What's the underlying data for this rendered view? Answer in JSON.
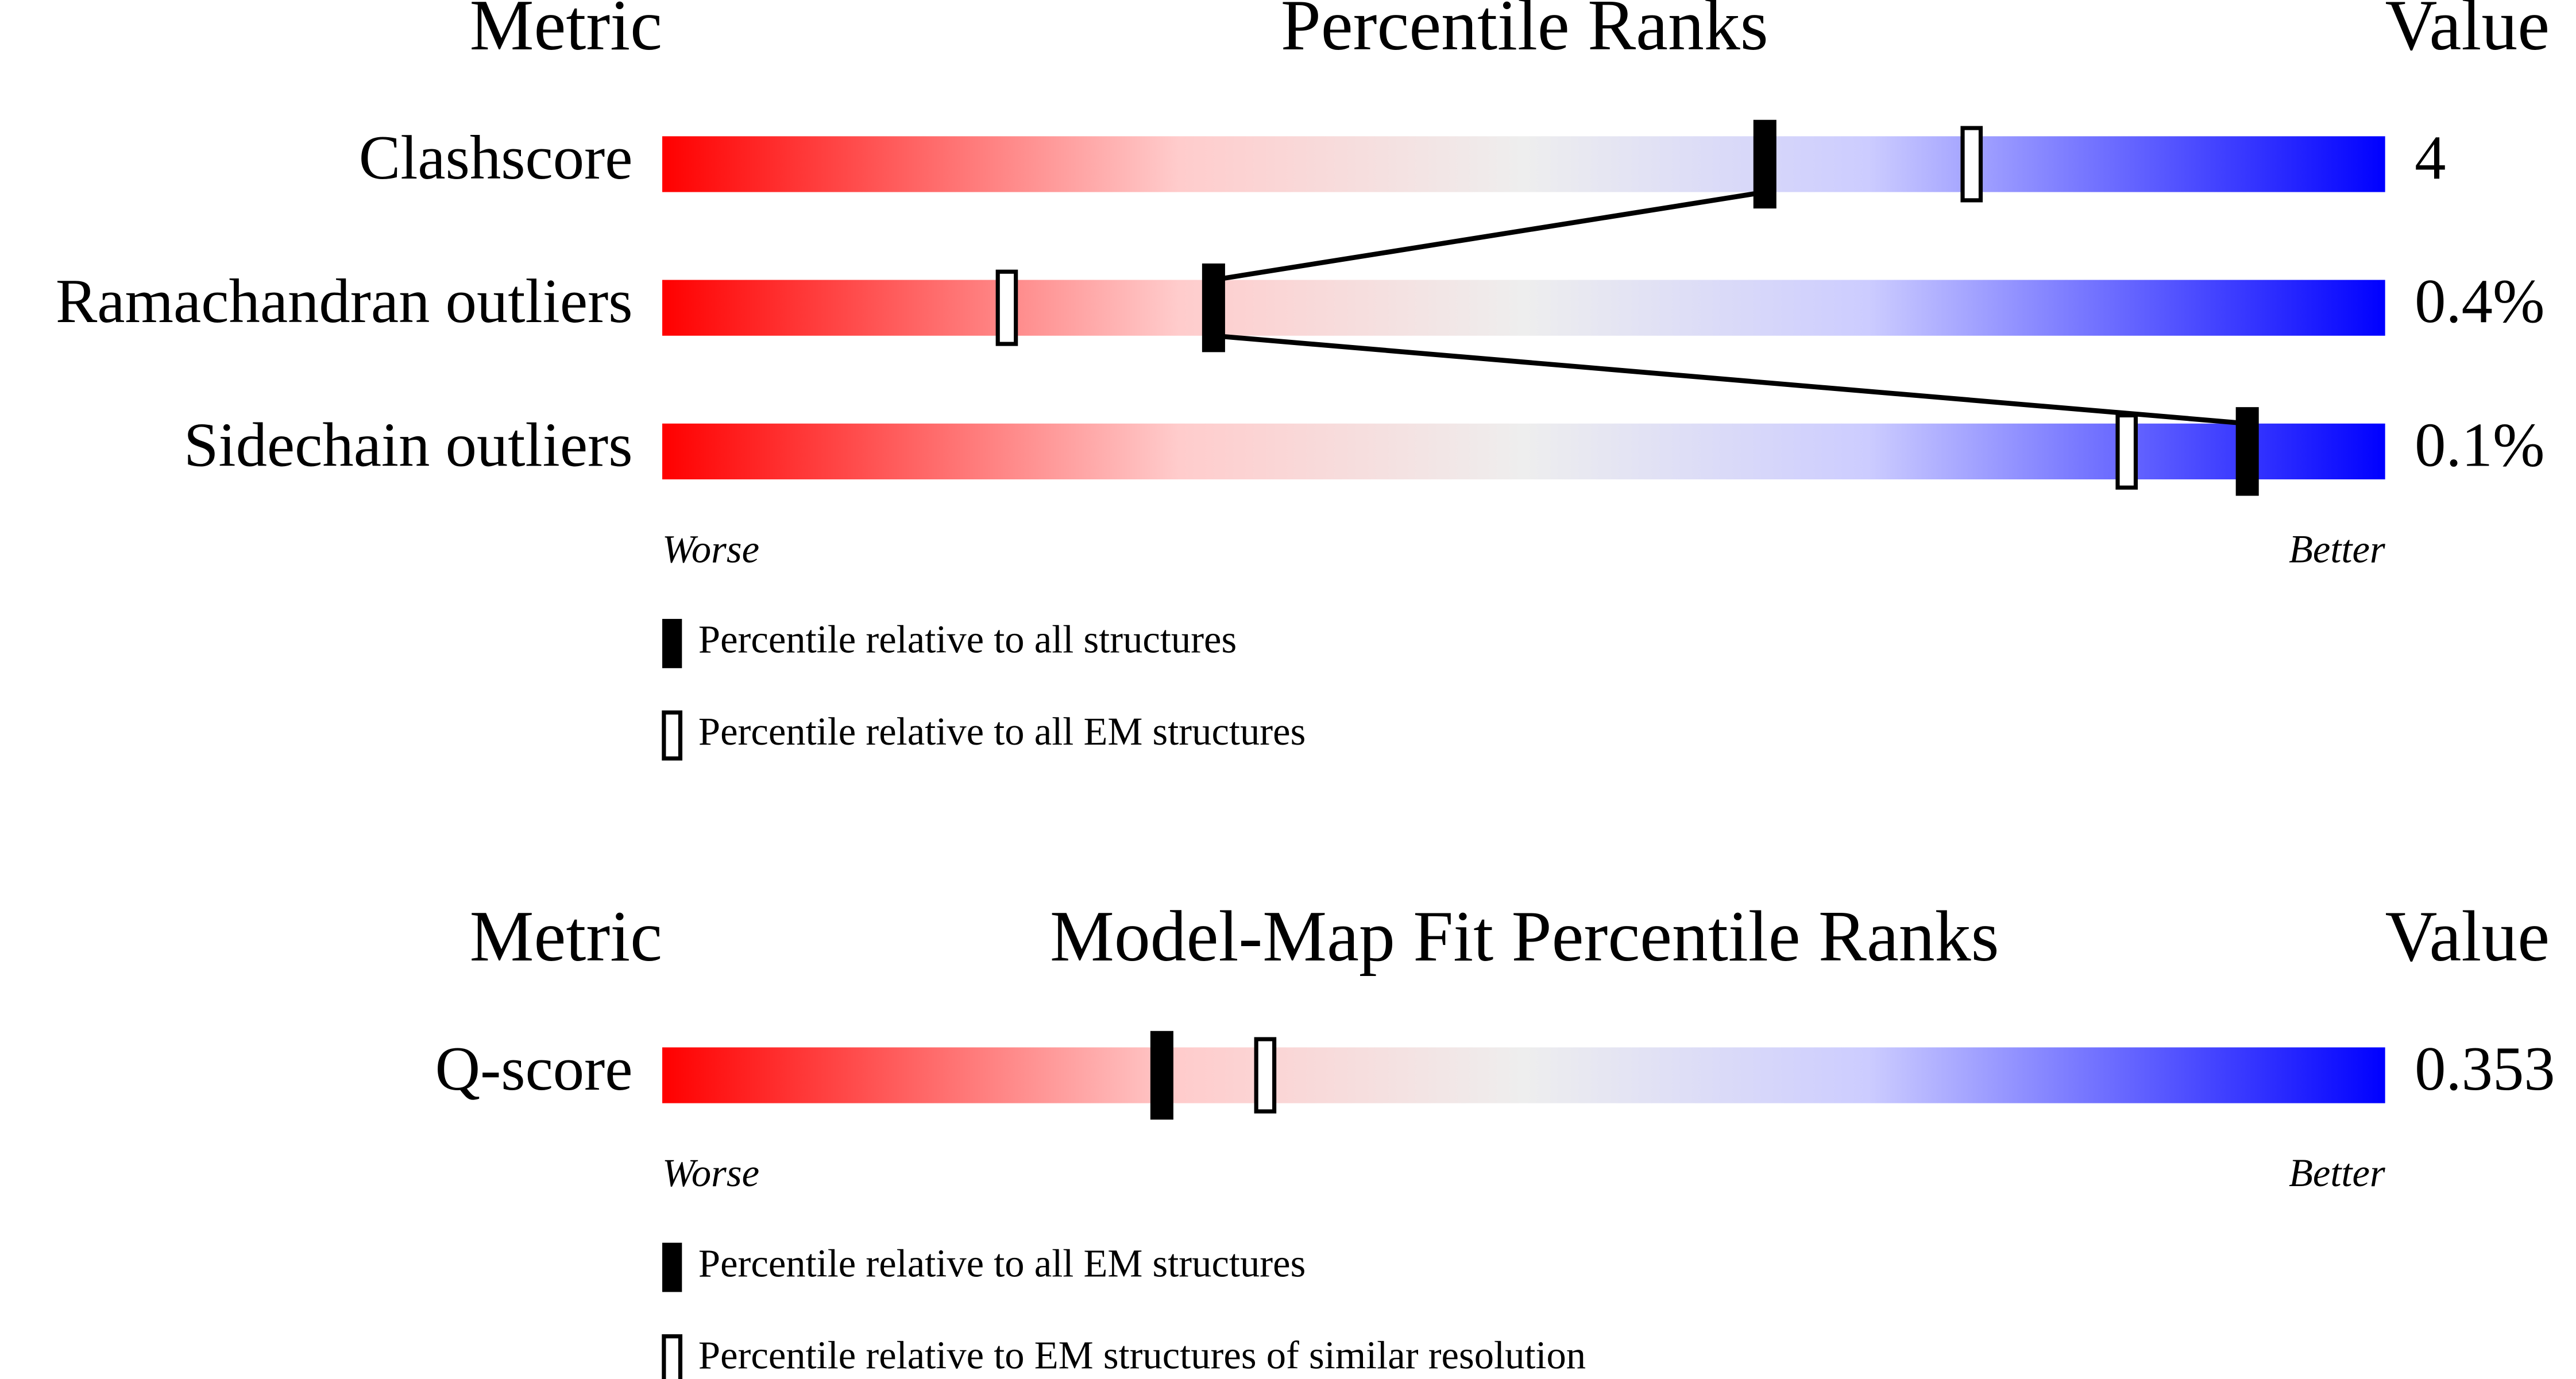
{
  "chart_data": [
    {
      "type": "slider",
      "header": {
        "metric": "Metric",
        "title": "Percentile Ranks",
        "value": "Value"
      },
      "categories": [
        "Clashscore",
        "Ramachandran outliers",
        "Sidechain outliers"
      ],
      "metric_values": [
        "4",
        "0.4%",
        "0.1%"
      ],
      "series": [
        {
          "name": "Percentile relative to all structures",
          "color": "#000000",
          "style": "filled",
          "values": [
            64,
            32,
            92
          ]
        },
        {
          "name": "Percentile relative to all EM structures",
          "color": "#000000",
          "style": "open",
          "values": [
            76,
            20,
            85
          ]
        }
      ],
      "xlim": [
        0,
        100
      ],
      "worse": "Worse",
      "better": "Better",
      "connect": true
    },
    {
      "type": "slider",
      "header": {
        "metric": "Metric",
        "title": "Model-Map Fit Percentile Ranks",
        "value": "Value"
      },
      "categories": [
        "Q-score"
      ],
      "metric_values": [
        "0.353"
      ],
      "series": [
        {
          "name": "Percentile relative to all EM structures",
          "color": "#000000",
          "style": "filled",
          "values": [
            29
          ]
        },
        {
          "name": "Percentile relative to EM structures of similar resolution",
          "color": "#000000",
          "style": "open",
          "values": [
            35
          ]
        }
      ],
      "xlim": [
        0,
        100
      ],
      "worse": "Worse",
      "better": "Better",
      "connect": false
    }
  ]
}
